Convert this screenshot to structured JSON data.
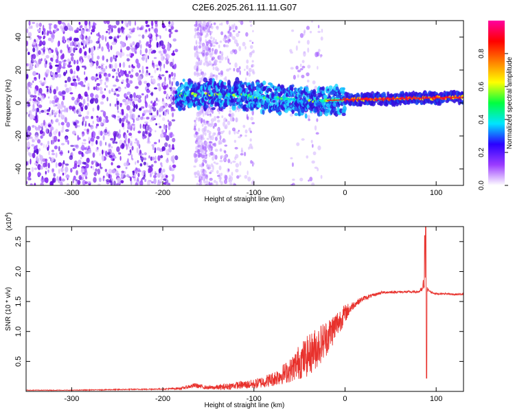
{
  "title": "C2E6.2025.261.11.11.G07",
  "colors": {
    "snr_line": "#e8312c",
    "spectrogram_sparse": "#7a1ee0",
    "spectrogram_band": "#2d1ed8",
    "frame": "#000000"
  },
  "chart_data": [
    {
      "type": "heatmap",
      "title": "C2E6.2025.261.11.11.G07",
      "xlabel": "Height of straight line (km)",
      "ylabel": "Frequency (Hz)",
      "xlim": [
        -350,
        130
      ],
      "ylim": [
        -50,
        50
      ],
      "x_ticks": [
        -300,
        -200,
        -100,
        0,
        100
      ],
      "y_ticks": [
        -40,
        -20,
        0,
        20,
        40
      ],
      "colorbar": {
        "label": "Normalized spectral amplitude",
        "range": [
          0,
          1
        ],
        "ticks": [
          "0.0",
          "0.2",
          "0.4",
          "0.6",
          "0.8"
        ],
        "colormap": [
          "#ffffff",
          "#9b3cff",
          "#2a00ff",
          "#00e5ff",
          "#00ff40",
          "#ffff00",
          "#ff7f00",
          "#ff0000",
          "#ff00a0"
        ]
      },
      "features": {
        "noise_region_x": [
          -350,
          -185
        ],
        "signal_band_center_hz": [
          [
            -185,
            5
          ],
          [
            -150,
            5
          ],
          [
            -120,
            5
          ],
          [
            -100,
            4
          ],
          [
            -80,
            3
          ],
          [
            -60,
            2.5
          ],
          [
            -40,
            1
          ],
          [
            -20,
            1.5
          ],
          [
            0,
            2
          ],
          [
            50,
            2.5
          ],
          [
            85,
            3
          ],
          [
            130,
            3.5
          ]
        ]
      }
    },
    {
      "type": "line",
      "xlabel": "Height of straight line (km)",
      "ylabel": "SNR (10 * v/v)",
      "y_multiplier": "(x10",
      "y_multiplier_exp": "4",
      "y_multiplier_close": ")",
      "xlim": [
        -350,
        130
      ],
      "ylim": [
        0,
        2.75
      ],
      "x_ticks": [
        -300,
        -200,
        -100,
        0,
        100
      ],
      "y_ticks": [
        "0.5",
        "1.0",
        "1.5",
        "2.0",
        "2.5"
      ],
      "series": [
        {
          "x": [
            -350,
            -300,
            -250,
            -200,
            -180,
            -165,
            -150,
            -135,
            -120,
            -100,
            -80,
            -60,
            -50,
            -40,
            -30,
            -20,
            -10,
            0,
            10,
            20,
            30,
            40,
            60,
            80,
            85,
            88,
            90,
            92,
            95,
            100,
            110,
            120,
            130
          ],
          "y": [
            0.02,
            0.02,
            0.03,
            0.04,
            0.05,
            0.1,
            0.06,
            0.07,
            0.1,
            0.12,
            0.2,
            0.35,
            0.5,
            0.6,
            0.75,
            0.9,
            1.1,
            1.3,
            1.45,
            1.55,
            1.6,
            1.65,
            1.66,
            1.66,
            1.7,
            1.9,
            1.7,
            1.68,
            1.65,
            1.63,
            1.63,
            1.62,
            1.62
          ],
          "noise": [
            0.005,
            0.005,
            0.008,
            0.01,
            0.02,
            0.04,
            0.03,
            0.05,
            0.06,
            0.08,
            0.12,
            0.2,
            0.3,
            0.35,
            0.35,
            0.3,
            0.25,
            0.15,
            0.06,
            0.04,
            0.03,
            0.02,
            0.02,
            0.02,
            0.05,
            0.3,
            0.05,
            0.02,
            0.02,
            0.015,
            0.015,
            0.015,
            0.015
          ],
          "spikes": [
            {
              "x": 88.5,
              "y": 2.75
            },
            {
              "x": 89.5,
              "y": 0.22
            },
            {
              "x": 87.5,
              "y": 2.6
            }
          ]
        }
      ]
    }
  ]
}
